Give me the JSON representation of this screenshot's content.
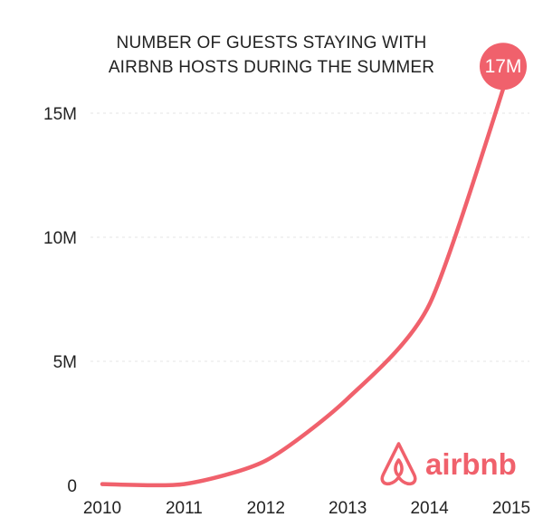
{
  "chart_data": {
    "type": "line",
    "title_lines": [
      "NUMBER OF GUESTS STAYING WITH",
      "AIRBNB HOSTS DURING THE SUMMER"
    ],
    "x": [
      "2010",
      "2011",
      "2012",
      "2013",
      "2014",
      "2015"
    ],
    "series": [
      {
        "values": [
          0.05,
          0.05,
          1.0,
          3.5,
          7.3,
          17
        ]
      }
    ],
    "y_ticks": [
      0,
      5,
      10,
      15
    ],
    "y_tick_labels": [
      "0",
      "5M",
      "10M",
      "15M"
    ],
    "ylim": [
      0,
      17
    ],
    "grid": true,
    "annotation": "17M",
    "line_color": "#f0616c"
  },
  "brand": {
    "logo_text": "airbnb",
    "logo_icon": "airbnb-belo-icon",
    "color": "#f0616c"
  }
}
